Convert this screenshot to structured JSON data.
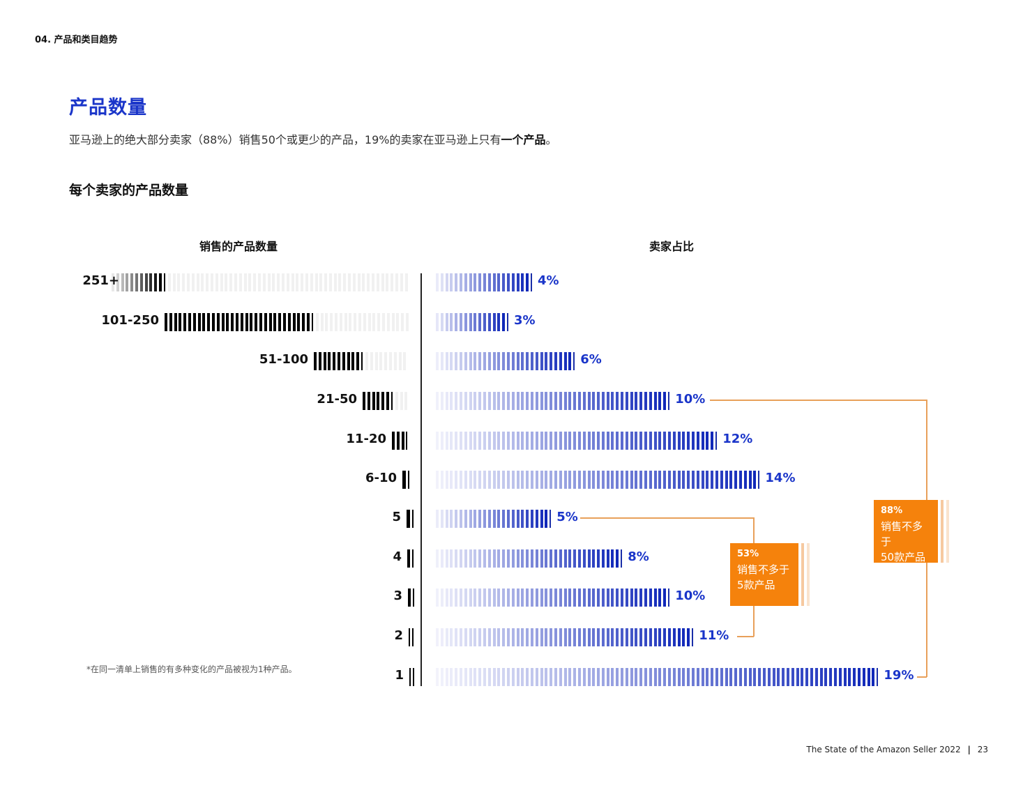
{
  "header": {
    "section_label": "04. 产品和类目趋势"
  },
  "page": {
    "title": "产品数量",
    "intro_prefix": "亚马逊上的绝大部分卖家（88%）销售50个或更少的产品，19%的卖家在亚马逊上只有",
    "intro_bold": "一个产品",
    "intro_suffix": "。"
  },
  "chart": {
    "title": "每个卖家的产品数量",
    "left_header": "销售的产品数量",
    "right_header": "卖家占比",
    "footnote": "*在同一清单上销售的有多种变化的产品被视为1种产品。",
    "colors": {
      "accent_blue": "#1a35c9",
      "black": "#000000",
      "orange": "#f5820c",
      "orange_line": "#e8a05a"
    },
    "callouts": [
      {
        "pct": "53%",
        "line1": "销售不多于",
        "line2": "5款产品"
      },
      {
        "pct": "88%",
        "line1": "销售不多于",
        "line2": "50款产品"
      }
    ]
  },
  "chart_data": {
    "type": "bar",
    "title": "每个卖家的产品数量",
    "xlabel": "卖家占比",
    "ylabel": "销售的产品数量",
    "categories": [
      "251+",
      "101-250",
      "51-100",
      "21-50",
      "11-20",
      "6-10",
      "5",
      "4",
      "3",
      "2",
      "1"
    ],
    "values": [
      4,
      3,
      6,
      10,
      12,
      14,
      5,
      8,
      10,
      11,
      19
    ],
    "value_labels": [
      "4%",
      "3%",
      "6%",
      "10%",
      "12%",
      "14%",
      "5%",
      "8%",
      "10%",
      "11%",
      "19%"
    ],
    "orientation": "horizontal",
    "unit": "%",
    "annotations": [
      {
        "text": "53% 销售不多于5款产品",
        "spans": [
          "5",
          "4",
          "3",
          "2",
          "1"
        ]
      },
      {
        "text": "88% 销售不多于50款产品",
        "spans": [
          "21-50",
          "11-20",
          "6-10",
          "5",
          "4",
          "3",
          "2",
          "1"
        ]
      }
    ],
    "grid": false,
    "legend": null
  },
  "footer": {
    "text": "The State of the Amazon Seller 2022",
    "separator": "|",
    "page_number": "23"
  }
}
